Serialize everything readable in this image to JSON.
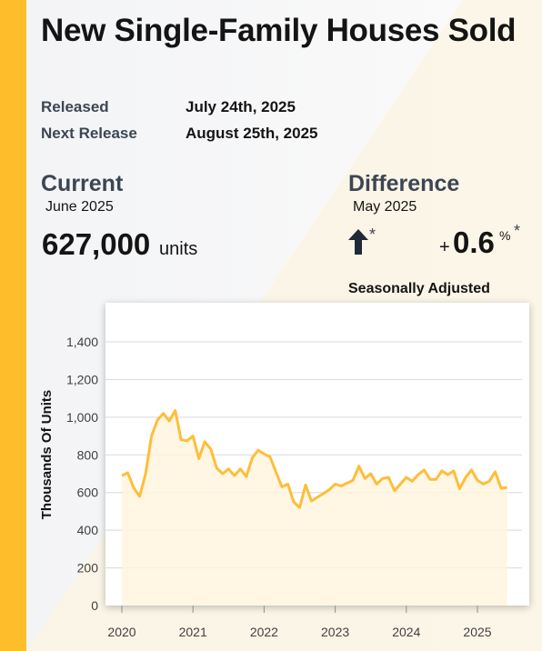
{
  "header": {
    "title": "New Single-Family Houses Sold"
  },
  "release": {
    "released_label": "Released",
    "released_value": "July 24th, 2025",
    "next_label": "Next Release",
    "next_value": "August 25th, 2025"
  },
  "current": {
    "title": "Current",
    "period": "June 2025",
    "value": "627,000",
    "unit": "units"
  },
  "difference": {
    "title": "Difference",
    "period": "May 2025",
    "direction_icon": "arrow-up-icon",
    "asterisk": "*",
    "sign": "+",
    "value": "0.6",
    "unit": "%",
    "unit_asterisk": "*",
    "note": "Seasonally Adjusted"
  },
  "colors": {
    "accent": "#FEBE2C",
    "line": "#FDBE3A",
    "area": "#FFF4DE",
    "text_dark": "#141414",
    "text_slate": "#3c4653"
  },
  "chart_data": {
    "type": "area",
    "title": "",
    "xlabel": "",
    "ylabel": "Thousands Of Units",
    "ylim": [
      0,
      1400
    ],
    "yticks": [
      0,
      200,
      400,
      600,
      800,
      1000,
      1200,
      1400
    ],
    "ytick_labels": [
      "0",
      "200",
      "400",
      "600",
      "800",
      "1,000",
      "1,200",
      "1,400"
    ],
    "xticks": [
      2020,
      2021,
      2022,
      2023,
      2024,
      2025
    ],
    "xtick_labels": [
      "2020",
      "2021",
      "2022",
      "2023",
      "2024",
      "2025"
    ],
    "grid": "horizontal",
    "x": [
      "2020-01",
      "2020-02",
      "2020-03",
      "2020-04",
      "2020-05",
      "2020-06",
      "2020-07",
      "2020-08",
      "2020-09",
      "2020-10",
      "2020-11",
      "2020-12",
      "2021-01",
      "2021-02",
      "2021-03",
      "2021-04",
      "2021-05",
      "2021-06",
      "2021-07",
      "2021-08",
      "2021-09",
      "2021-10",
      "2021-11",
      "2021-12",
      "2022-01",
      "2022-02",
      "2022-03",
      "2022-04",
      "2022-05",
      "2022-06",
      "2022-07",
      "2022-08",
      "2022-09",
      "2022-10",
      "2022-11",
      "2022-12",
      "2023-01",
      "2023-02",
      "2023-03",
      "2023-04",
      "2023-05",
      "2023-06",
      "2023-07",
      "2023-08",
      "2023-09",
      "2023-10",
      "2023-11",
      "2023-12",
      "2024-01",
      "2024-02",
      "2024-03",
      "2024-04",
      "2024-05",
      "2024-06",
      "2024-07",
      "2024-08",
      "2024-09",
      "2024-10",
      "2024-11",
      "2024-12",
      "2025-01",
      "2025-02",
      "2025-03",
      "2025-04",
      "2025-05",
      "2025-06"
    ],
    "series": [
      {
        "values": [
          690,
          705,
          625,
          580,
          700,
          900,
          985,
          1020,
          980,
          1035,
          880,
          875,
          900,
          780,
          870,
          830,
          730,
          700,
          725,
          690,
          725,
          685,
          785,
          825,
          805,
          790,
          710,
          630,
          645,
          550,
          520,
          640,
          555,
          575,
          595,
          615,
          645,
          635,
          650,
          665,
          740,
          675,
          700,
          645,
          675,
          680,
          610,
          645,
          680,
          660,
          695,
          720,
          670,
          670,
          715,
          695,
          715,
          620,
          680,
          720,
          665,
          645,
          660,
          710,
          623,
          627
        ]
      }
    ]
  }
}
